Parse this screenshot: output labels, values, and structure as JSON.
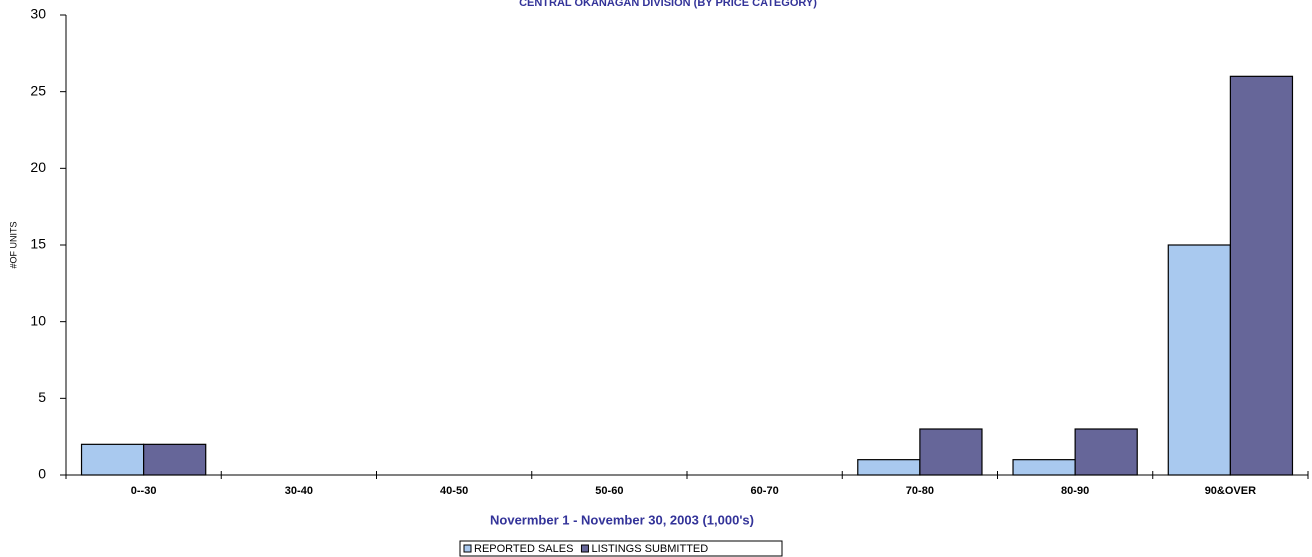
{
  "chart_data": {
    "type": "bar",
    "title": "CENTRAL OKANAGAN DIVISION (BY PRICE CATEGORY)",
    "x_label": "Novermber 1 - November 30, 2003 (1,000's)",
    "y_label": "#OF UNITS",
    "categories": [
      "0--30",
      "30-40",
      "40-50",
      "50-60",
      "60-70",
      "70-80",
      "80-90",
      "90&OVER"
    ],
    "series": [
      {
        "name": "REPORTED SALES",
        "color": "#a9c9ef",
        "values": [
          2,
          0,
          0,
          0,
          0,
          1,
          1,
          15
        ]
      },
      {
        "name": "LISTINGS SUBMITTED",
        "color": "#666699",
        "values": [
          2,
          0,
          0,
          0,
          0,
          3,
          3,
          26
        ]
      }
    ],
    "ylim": [
      0,
      30
    ],
    "yticks": [
      0,
      5,
      10,
      15,
      20,
      25,
      30
    ],
    "grid": false
  }
}
